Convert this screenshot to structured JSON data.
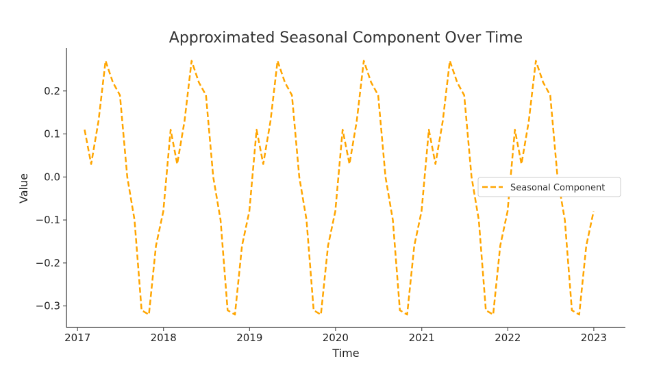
{
  "chart_data": {
    "type": "line",
    "title": "Approximated Seasonal Component Over Time",
    "xlabel": "Time",
    "ylabel": "Value",
    "xlim": [
      "2016-11-15",
      "2023-05-15"
    ],
    "ylim": [
      -0.35,
      0.3
    ],
    "x_ticks": [
      "2017",
      "2018",
      "2019",
      "2020",
      "2021",
      "2022",
      "2023"
    ],
    "y_ticks": [
      0.2,
      0.1,
      0.0,
      -0.1,
      -0.2,
      -0.3
    ],
    "y_tick_labels": [
      "0.2",
      "0.1",
      "0.0",
      "−0.1",
      "−0.2",
      "−0.3"
    ],
    "grid": false,
    "legend_position": "center-right",
    "series": [
      {
        "name": "Seasonal Component",
        "color": "#FFA500",
        "linestyle": "dashed",
        "x": [
          "2017-01-31",
          "2017-02-28",
          "2017-03-31",
          "2017-04-30",
          "2017-05-31",
          "2017-06-30",
          "2017-07-31",
          "2017-08-31",
          "2017-09-30",
          "2017-10-31",
          "2017-11-30",
          "2017-12-31",
          "2018-01-31",
          "2018-02-28",
          "2018-03-31",
          "2018-04-30",
          "2018-05-31",
          "2018-06-30",
          "2018-07-31",
          "2018-08-31",
          "2018-09-30",
          "2018-10-31",
          "2018-11-30",
          "2018-12-31",
          "2019-01-31",
          "2019-02-28",
          "2019-03-31",
          "2019-04-30",
          "2019-05-31",
          "2019-06-30",
          "2019-07-31",
          "2019-08-31",
          "2019-09-30",
          "2019-10-31",
          "2019-11-30",
          "2019-12-31",
          "2020-01-31",
          "2020-02-29",
          "2020-03-31",
          "2020-04-30",
          "2020-05-31",
          "2020-06-30",
          "2020-07-31",
          "2020-08-31",
          "2020-09-30",
          "2020-10-31",
          "2020-11-30",
          "2020-12-31",
          "2021-01-31",
          "2021-02-28",
          "2021-03-31",
          "2021-04-30",
          "2021-05-31",
          "2021-06-30",
          "2021-07-31",
          "2021-08-31",
          "2021-09-30",
          "2021-10-31",
          "2021-11-30",
          "2021-12-31",
          "2022-01-31",
          "2022-02-28",
          "2022-03-31",
          "2022-04-30",
          "2022-05-31",
          "2022-06-30",
          "2022-07-31",
          "2022-08-31",
          "2022-09-30",
          "2022-10-31",
          "2022-11-30",
          "2022-12-31"
        ],
        "values": [
          0.11,
          0.03,
          0.13,
          0.27,
          0.22,
          0.19,
          0.0,
          -0.1,
          -0.31,
          -0.32,
          -0.16,
          -0.08,
          0.11,
          0.03,
          0.13,
          0.27,
          0.22,
          0.19,
          0.0,
          -0.1,
          -0.31,
          -0.32,
          -0.16,
          -0.08,
          0.11,
          0.03,
          0.13,
          0.27,
          0.22,
          0.19,
          0.0,
          -0.1,
          -0.31,
          -0.32,
          -0.16,
          -0.08,
          0.11,
          0.03,
          0.13,
          0.27,
          0.22,
          0.19,
          0.0,
          -0.1,
          -0.31,
          -0.32,
          -0.16,
          -0.08,
          0.11,
          0.03,
          0.13,
          0.27,
          0.22,
          0.19,
          0.0,
          -0.1,
          -0.31,
          -0.32,
          -0.16,
          -0.08,
          0.11,
          0.03,
          0.13,
          0.27,
          0.22,
          0.19,
          0.0,
          -0.1,
          -0.31,
          -0.32,
          -0.16,
          -0.08
        ]
      }
    ]
  }
}
